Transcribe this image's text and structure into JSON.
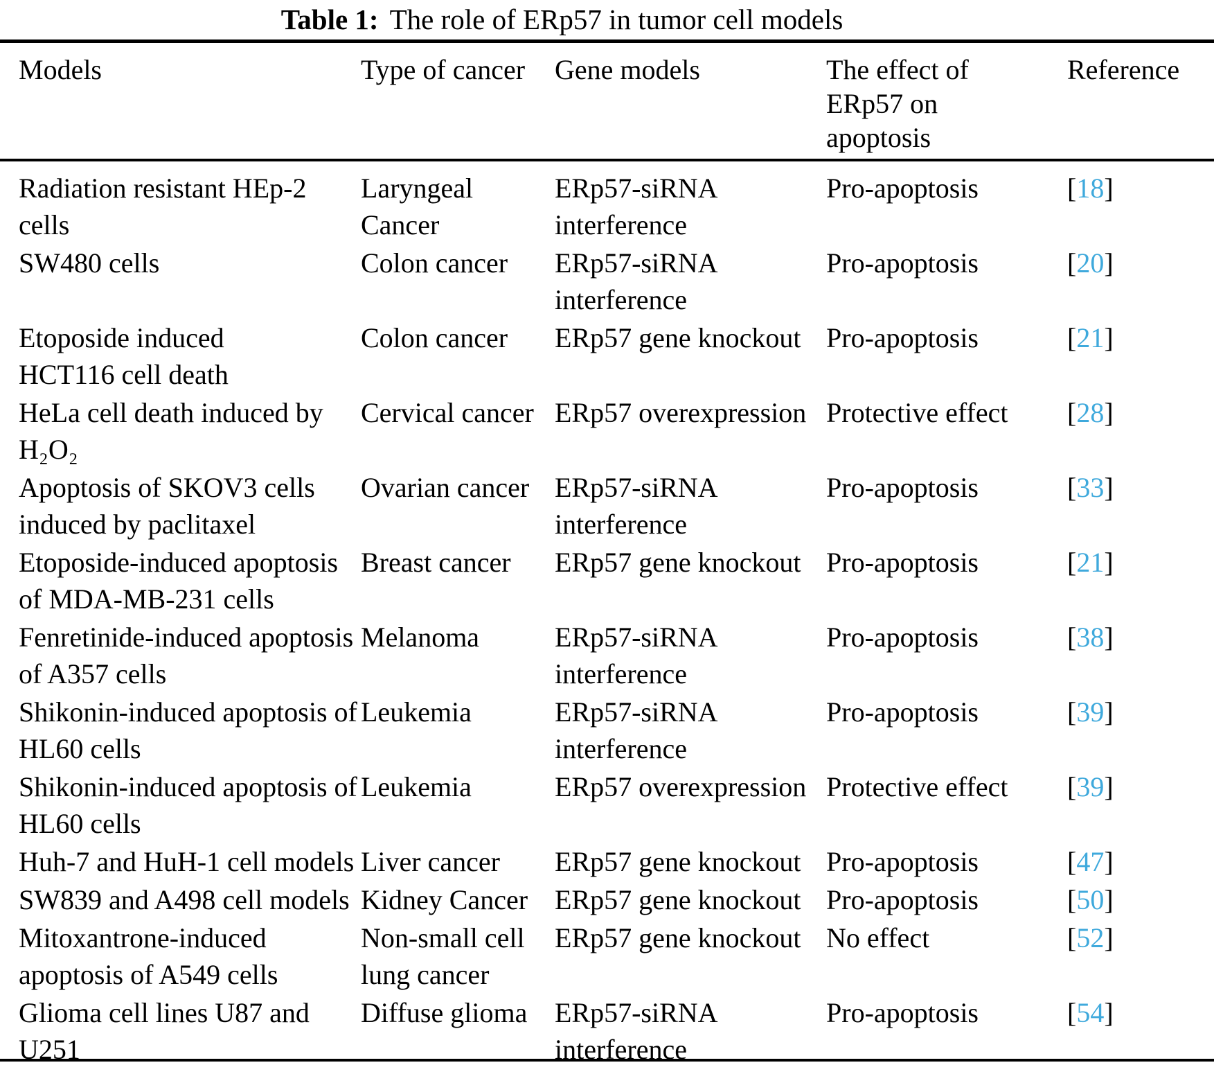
{
  "title": {
    "label": "Table 1:",
    "text": "The role of ERp57 in tumor cell models"
  },
  "accent": {
    "reference_link_color": "#3FA9DC",
    "text_color": "#000000",
    "background_color": "#ffffff"
  },
  "table": {
    "columns": [
      "Models",
      "Type of cancer",
      "Gene models",
      "The effect of\nERp57 on\napoptosis",
      "Reference"
    ],
    "ref_open": "[",
    "ref_close": "]",
    "rows": [
      {
        "model": "Radiation resistant HEp-2\ncells",
        "cancer": "Laryngeal\nCancer",
        "gene": "ERp57-siRNA\ninterference",
        "effect": "Pro-apoptosis",
        "ref": "18"
      },
      {
        "model": "SW480 cells",
        "cancer": "Colon cancer",
        "gene": "ERp57-siRNA\ninterference",
        "effect": "Pro-apoptosis",
        "ref": "20"
      },
      {
        "model": "Etoposide induced\nHCT116 cell death",
        "cancer": "Colon cancer",
        "gene": "ERp57 gene knockout",
        "effect": "Pro-apoptosis",
        "ref": "21"
      },
      {
        "model": "HeLa cell death induced by\nH₂O₂",
        "cancer": "Cervical cancer",
        "gene": "ERp57 overexpression",
        "effect": "Protective effect",
        "ref": "28"
      },
      {
        "model": "Apoptosis of SKOV3 cells\ninduced by paclitaxel",
        "cancer": "Ovarian cancer",
        "gene": "ERp57-siRNA\ninterference",
        "effect": "Pro-apoptosis",
        "ref": "33"
      },
      {
        "model": "Etoposide-induced apoptosis\nof MDA-MB-231 cells",
        "cancer": "Breast cancer",
        "gene": "ERp57 gene knockout",
        "effect": "Pro-apoptosis",
        "ref": "21"
      },
      {
        "model": "Fenretinide-induced apoptosis\nof A357 cells",
        "cancer": "Melanoma",
        "gene": "ERp57-siRNA\ninterference",
        "effect": "Pro-apoptosis",
        "ref": "38"
      },
      {
        "model": "Shikonin-induced apoptosis of\nHL60 cells",
        "cancer": "Leukemia",
        "gene": "ERp57-siRNA\ninterference",
        "effect": "Pro-apoptosis",
        "ref": "39"
      },
      {
        "model": "Shikonin-induced apoptosis of\nHL60 cells",
        "cancer": "Leukemia",
        "gene": "ERp57 overexpression",
        "effect": "Protective effect",
        "ref": "39"
      },
      {
        "model": "Huh-7 and HuH-1 cell models",
        "cancer": "Liver cancer",
        "gene": "ERp57 gene knockout",
        "effect": "Pro-apoptosis",
        "ref": "47"
      },
      {
        "model": "SW839 and A498 cell models",
        "cancer": "Kidney Cancer",
        "gene": "ERp57 gene knockout",
        "effect": "Pro-apoptosis",
        "ref": "50"
      },
      {
        "model": "Mitoxantrone-induced\napoptosis of A549 cells",
        "cancer": "Non-small cell\nlung cancer",
        "gene": "ERp57 gene knockout",
        "effect": "No effect",
        "ref": "52"
      },
      {
        "model": "Glioma cell lines U87 and\nU251",
        "cancer": "Diffuse glioma",
        "gene": "ERp57-siRNA\ninterference",
        "effect": "Pro-apoptosis",
        "ref": "54"
      }
    ]
  }
}
